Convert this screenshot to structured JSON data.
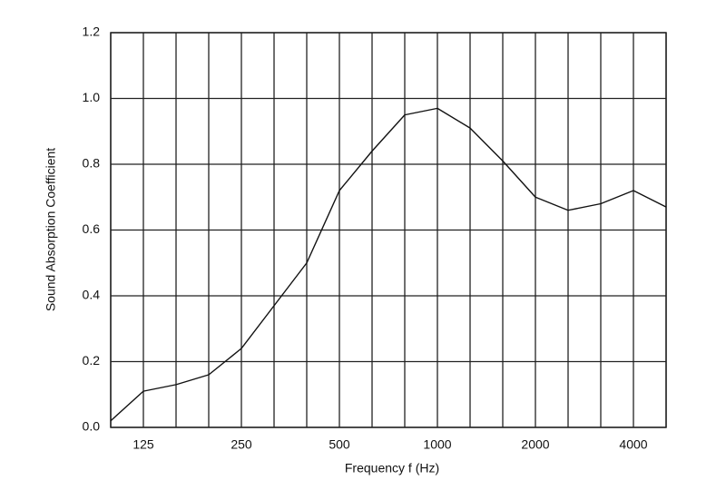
{
  "chart_data": {
    "type": "line",
    "x_label": "Frequency f (Hz)",
    "y_label": "Sound Absorption Coefficient",
    "categories": [
      null,
      "125",
      null,
      null,
      "250",
      null,
      null,
      "500",
      null,
      null,
      "1000",
      null,
      null,
      "2000",
      null,
      null,
      "4000",
      null
    ],
    "series": [
      {
        "color": "#111111",
        "values": [
          0.02,
          0.11,
          0.13,
          0.16,
          0.24,
          0.37,
          0.5,
          0.72,
          0.84,
          0.95,
          0.97,
          0.91,
          0.81,
          0.7,
          0.66,
          0.68,
          0.72,
          0.67
        ]
      }
    ],
    "ylim": [
      0,
      1.2
    ],
    "yticks": [
      {
        "value": 0,
        "label": "0.0"
      },
      0.2,
      0.4,
      0.6,
      0.8,
      {
        "value": 1,
        "label": "1.0"
      },
      1.2
    ],
    "grid": true
  }
}
